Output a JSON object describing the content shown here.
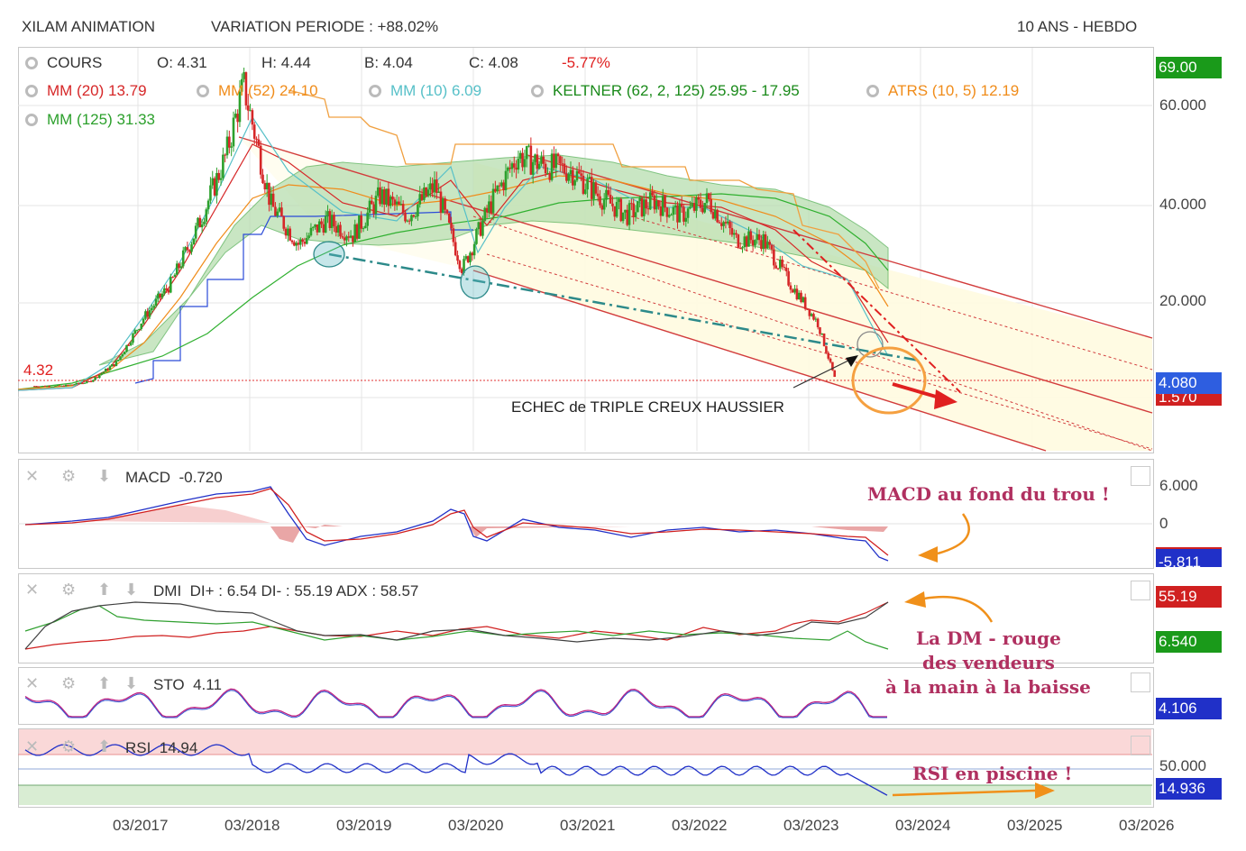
{
  "header": {
    "name": "XILAM ANIMATION",
    "variation": "VARIATION PERIODE : +88.02%",
    "period": "10 ANS - HEBDO"
  },
  "price_panel": {
    "legend": {
      "cours": "COURS",
      "open": "O: 4.31",
      "high": "H: 4.44",
      "low": "B: 4.04",
      "close": "C: 4.08",
      "change": "-5.77%",
      "mm20": "MM (20)  13.79",
      "mm52": "MM (52)  24.10",
      "mm10": "MM (10)  6.09",
      "keltner": "KELTNER (62, 2, 125)  25.95 - 17.95",
      "atrs": "ATRS (10, 5)  12.19",
      "mm125": "MM (125)  31.33"
    },
    "y_ticks": [
      "60.000",
      "40.000",
      "20.000"
    ],
    "tag_top": "69.00",
    "tag_price": "4.080",
    "tag_alt": "1.570",
    "level_label": "4.32",
    "annotation": "ECHEC de TRIPLE CREUX HAUSSIER"
  },
  "macd_panel": {
    "label": "MACD",
    "value": "-0.720",
    "ticks": [
      "6.000",
      "0"
    ],
    "tag": "-5.811"
  },
  "dmi_panel": {
    "label": "DMI",
    "values": "DI+ : 6.54 DI- : 55.19 ADX : 58.57",
    "tag_red": "55.19",
    "tag_green": "6.540"
  },
  "sto_panel": {
    "label": "STO",
    "value": "4.11",
    "tag": "4.106"
  },
  "rsi_panel": {
    "label": "RSI",
    "value": "14.94",
    "tick": "50.000",
    "tag": "14.936"
  },
  "x_labels": [
    "03/2017",
    "03/2018",
    "03/2019",
    "03/2020",
    "03/2021",
    "03/2022",
    "03/2023",
    "03/2024",
    "03/2025",
    "03/2026"
  ],
  "notes": {
    "macd": "MACD au fond du trou !",
    "dm_1": "La DM - rouge",
    "dm_2": "des vendeurs",
    "dm_3": "à la main à la baisse",
    "rsi": "RSI en piscine !"
  },
  "colors": {
    "bull": "#2ca02c",
    "bear": "#d62728",
    "mm20": "#d62728",
    "mm52": "#f08c1a",
    "mm10": "#57c0c8",
    "keltner": "#1a8a1a",
    "mm125": "#2ca02c",
    "blue": "#1f3fd0"
  },
  "chart_data": {
    "type": "candlestick",
    "title": "XILAM ANIMATION",
    "period": "10 ANS - HEBDO",
    "x_range": [
      "2016-03",
      "2026-03"
    ],
    "series": [
      {
        "name": "COURS",
        "dates": [
          "2016-04",
          "2016-07",
          "2016-10",
          "2017-01",
          "2017-04",
          "2017-07",
          "2017-10",
          "2018-01",
          "2018-03",
          "2018-06",
          "2018-09",
          "2018-12",
          "2019-03",
          "2019-06",
          "2019-09",
          "2019-12",
          "2020-03",
          "2020-06",
          "2020-09",
          "2020-12",
          "2021-03",
          "2021-06",
          "2021-09",
          "2021-12",
          "2022-03",
          "2022-06",
          "2022-09",
          "2022-12",
          "2023-03",
          "2023-06",
          "2023-08"
        ],
        "close": [
          3,
          3,
          4,
          8,
          17,
          24,
          36,
          50,
          64,
          40,
          32,
          37,
          34,
          42,
          38,
          44,
          27,
          40,
          50,
          48,
          47,
          42,
          38,
          41,
          38,
          41,
          33,
          33,
          24,
          16,
          4.08
        ]
      }
    ],
    "ohlc_last": {
      "open": 4.31,
      "high": 4.44,
      "low": 4.04,
      "close": 4.08,
      "change_pct": -5.77
    },
    "reference_level": 4.32,
    "indicators": {
      "MM20": 13.79,
      "MM52": 24.1,
      "MM10": 6.09,
      "MM125": 31.33,
      "KELTNER_upper": 25.95,
      "KELTNER_lower": 17.95,
      "ATRS": 12.19,
      "MACD": -0.72,
      "MACD_signal_tag": -5.811,
      "DI_plus": 6.54,
      "DI_minus": 55.19,
      "ADX": 58.57,
      "STO": 4.11,
      "RSI": 14.94
    },
    "y_ticks": [
      20,
      40,
      60
    ]
  }
}
